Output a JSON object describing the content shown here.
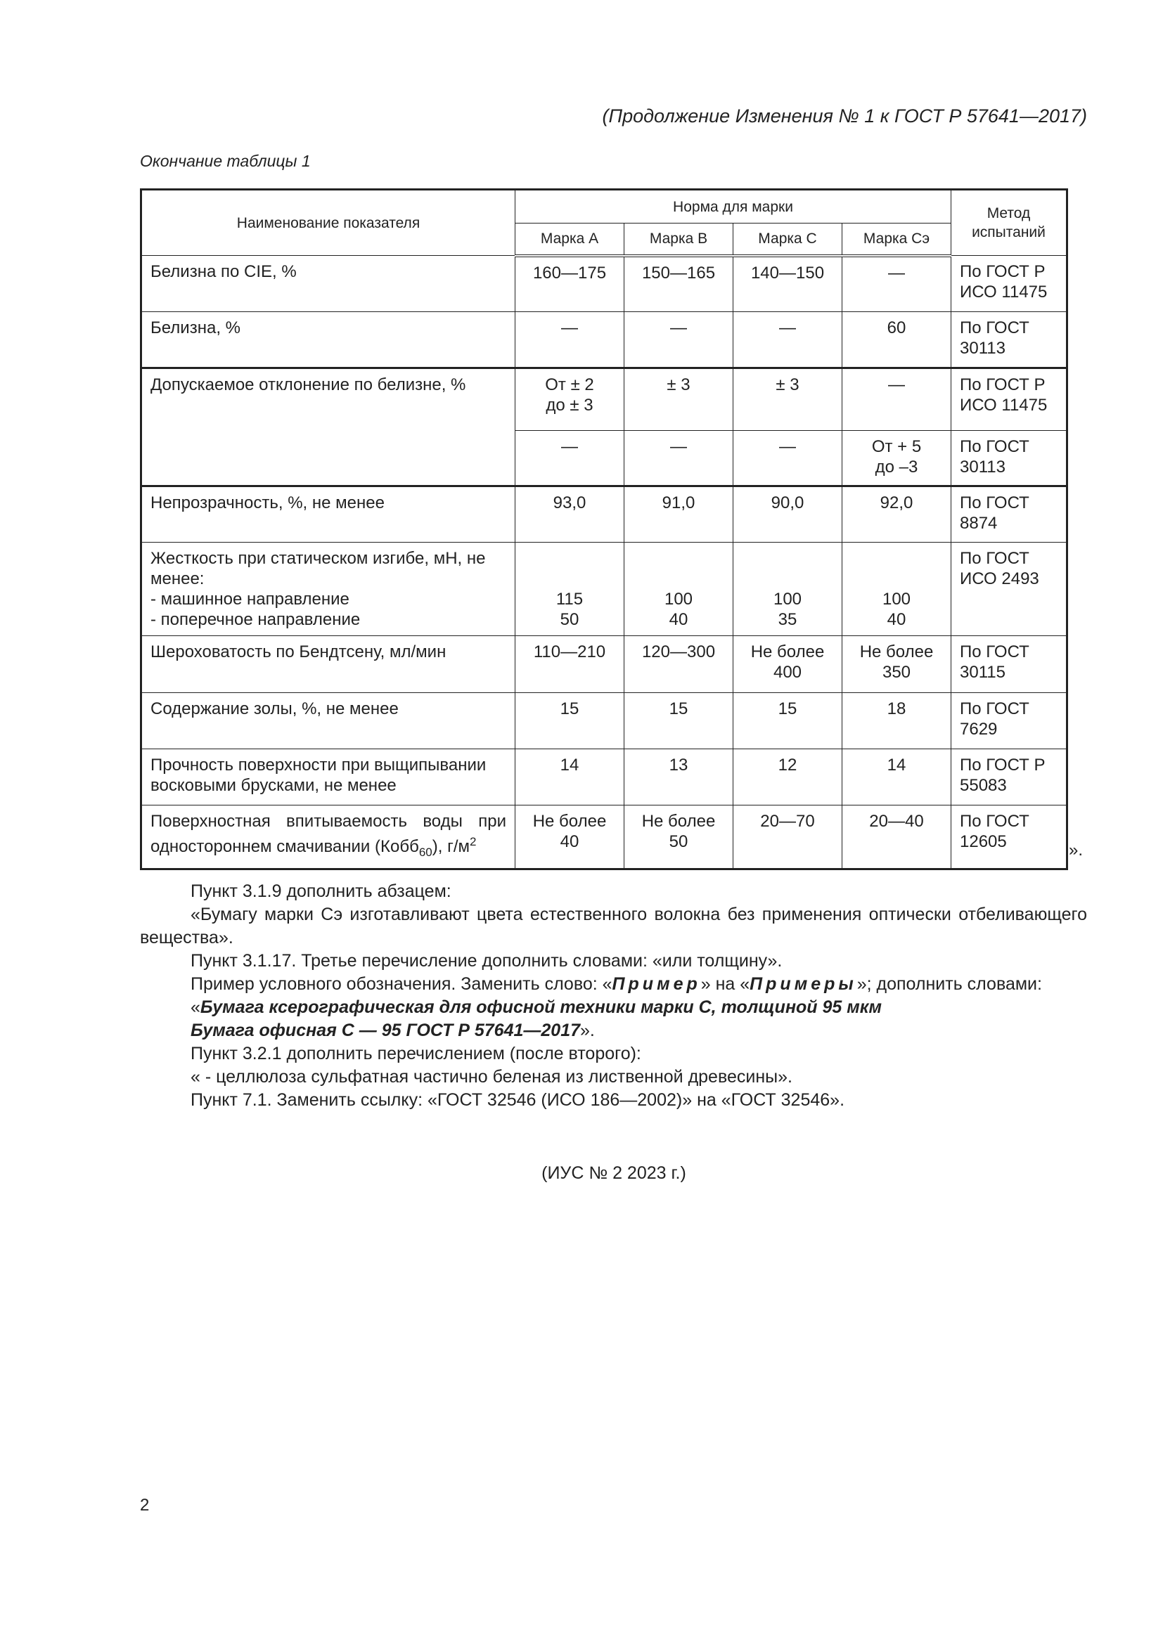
{
  "running_head": "(Продолжение Изменения № 1 к ГОСТ Р 57641—2017)",
  "table_caption": "Окончание таблицы 1",
  "table": {
    "header": {
      "name": "Наименование показателя",
      "norm": "Норма для марки",
      "method": "Метод испытаний",
      "grades": [
        "Марка А",
        "Марка В",
        "Марка С",
        "Марка Сэ"
      ]
    },
    "rows": [
      {
        "name": "Белизна по CIE, %",
        "values": [
          "160—175",
          "150—165",
          "140—150",
          "—"
        ],
        "method": "По ГОСТ Р ИСО 11475"
      },
      {
        "name": "Белизна, %",
        "values": [
          "—",
          "—",
          "—",
          "60"
        ],
        "method": "По ГОСТ 30113"
      },
      {
        "name": "Допускаемое отклонение по белизне, %",
        "values": [
          "От ± 2 до ± 3",
          "± 3",
          "± 3",
          "—"
        ],
        "method": "По ГОСТ Р ИСО 11475"
      },
      {
        "name": "",
        "values": [
          "—",
          "—",
          "—",
          "От + 5 до –3"
        ],
        "method": "По ГОСТ 30113"
      },
      {
        "name": "Непрозрачность, %, не менее",
        "values": [
          "93,0",
          "91,0",
          "90,0",
          "92,0"
        ],
        "method": "По ГОСТ 8874"
      },
      {
        "name": "Жесткость при статическом изгибе, мН, не менее:",
        "sub": [
          "- машинное направление",
          "- поперечное направление"
        ],
        "values_md": [
          "115",
          "100",
          "100",
          "100"
        ],
        "values_cd": [
          "50",
          "40",
          "35",
          "40"
        ],
        "method": "По ГОСТ ИСО 2493"
      },
      {
        "name": "Шероховатость по Бендтсену, мл/мин",
        "values": [
          "110—210",
          "120—300",
          "Не более 400",
          "Не более 350"
        ],
        "method": "По ГОСТ 30115"
      },
      {
        "name": "Содержание золы, %, не менее",
        "values": [
          "15",
          "15",
          "15",
          "18"
        ],
        "method": "По ГОСТ 7629"
      },
      {
        "name": "Прочность поверхности при выщипывании восковыми брусками, не менее",
        "values": [
          "14",
          "13",
          "12",
          "14"
        ],
        "method": "По ГОСТ Р 55083"
      },
      {
        "name_a": "Поверхностная впитываемость воды при одностороннем смачивании (Кобб",
        "name_sub": "60",
        "name_b": "), г/м",
        "name_sup": "2",
        "values": [
          "Не более 40",
          "Не более 50",
          "20—70",
          "20—40"
        ],
        "method": "По ГОСТ 12605"
      }
    ]
  },
  "close_quote": "».",
  "body": {
    "p1": "Пункт 3.1.9 дополнить абзацем:",
    "p2": "«Бумагу марки Сэ изготавливают цвета естественного волокна без применения оптически отбеливающего вещества».",
    "p3": "Пункт 3.1.17. Третье перечисление дополнить словами: «или толщину».",
    "p4_a": "Пример условного обозначения. Заменить слово: «",
    "p4_b": "Пример",
    "p4_c": "» на «",
    "p4_d": "Примеры",
    "p4_e": "»; дополнить словами:",
    "p5_a": "«",
    "p5_b": "Бумага ксерографическая для офисной техники марки С, толщиной 95 мкм",
    "p6_a": "Бумага офисная С — 95 ГОСТ Р 57641—2017",
    "p6_b": "».",
    "p7": "Пункт 3.2.1 дополнить перечислением (после второго):",
    "p8": "« - целлюлоза сульфатная частично беленая из лиственной древесины».",
    "p9": "Пункт 7.1. Заменить ссылку: «ГОСТ 32546 (ИСО 186—2002)» на «ГОСТ 32546»."
  },
  "ius": "(ИУС № 2  2023 г.)",
  "page_number": "2"
}
